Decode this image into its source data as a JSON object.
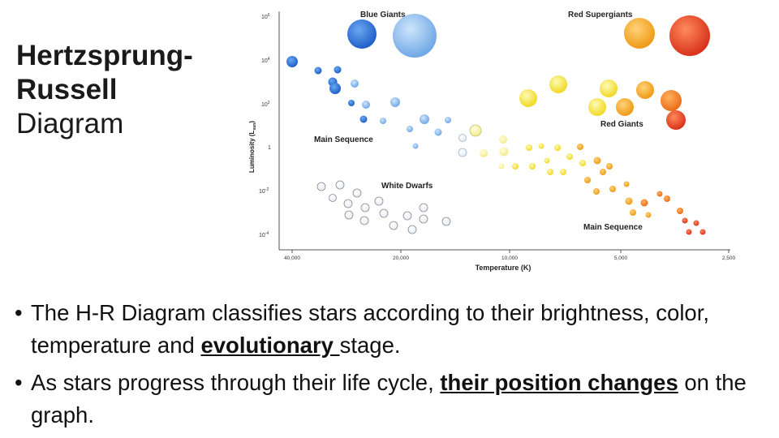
{
  "title": {
    "line1": "Hertzsprung-",
    "line2": "Russell",
    "line3": "Diagram"
  },
  "diagram": {
    "y_axis_label": "Luminosity (L",
    "y_axis_sub": "sun",
    "y_axis_close": ")",
    "x_axis_label": "Temperature (K)",
    "y_ticks": [
      {
        "base": "10",
        "exp": "6"
      },
      {
        "base": "10",
        "exp": "4"
      },
      {
        "base": "10",
        "exp": "2"
      },
      {
        "base": "1",
        "exp": ""
      },
      {
        "base": "10",
        "exp": "-2"
      },
      {
        "base": "10",
        "exp": "-4"
      }
    ],
    "x_ticks": [
      "40,000",
      "20,000",
      "10,000",
      "5,000",
      "2,500"
    ],
    "labels": {
      "blue_giants": "Blue Giants",
      "red_supergiants": "Red Supergiants",
      "red_giants": "Red Giants",
      "main_sequence_upper": "Main Sequence",
      "white_dwarfs": "White Dwarfs",
      "main_sequence_lower": "Main Sequence"
    },
    "colors": {
      "blue": "#2f6fd6",
      "light_blue": "#7fb4ec",
      "white": "#ffffff",
      "yellow": "#f3e84a",
      "orange": "#f0a521",
      "red": "#e2442a"
    }
  },
  "bullets": [
    {
      "pre": "The H-R Diagram classifies stars according to their brightness, color, temperature and ",
      "emph": "evolutionary ",
      "post": "stage."
    },
    {
      "pre": "As stars progress through their life cycle, ",
      "emph": "their position changes",
      "post": " on the graph."
    }
  ]
}
